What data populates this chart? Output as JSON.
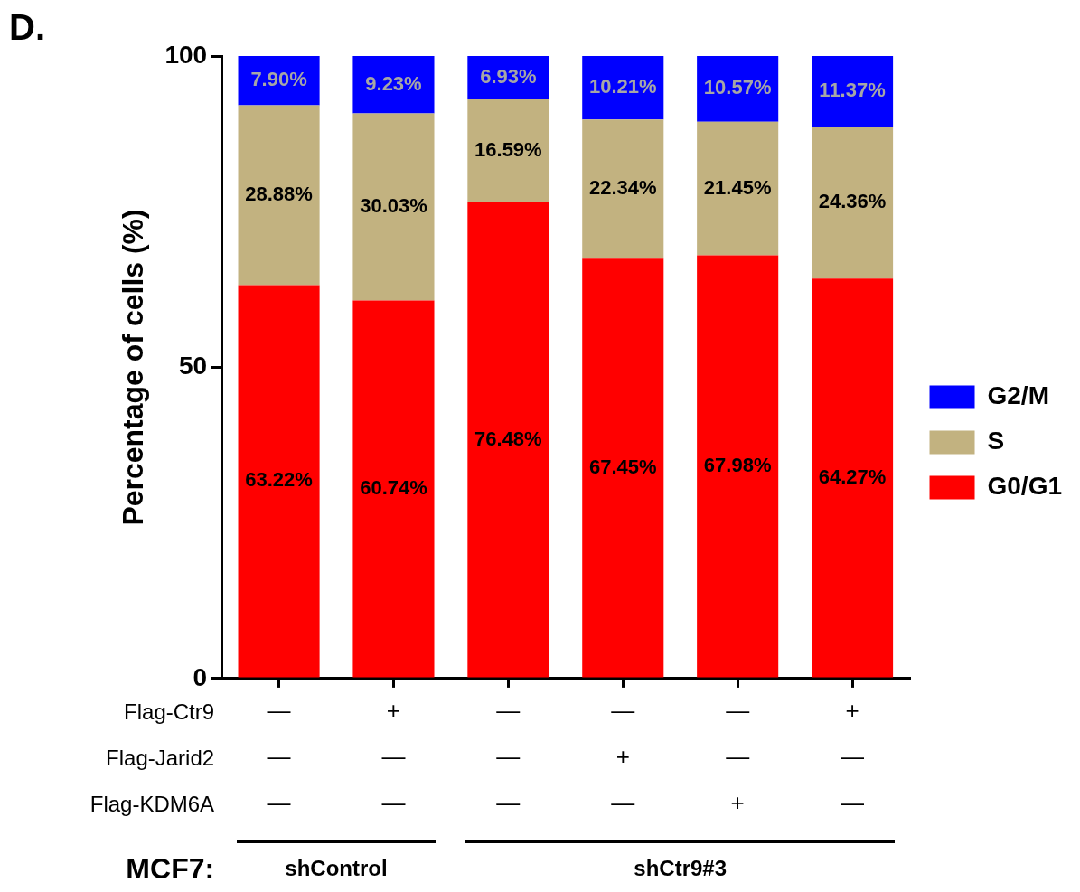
{
  "chart_data": {
    "type": "bar",
    "stacked": true,
    "categories": [
      "—\n—\n—",
      "+\n—\n—",
      "—\n—\n—",
      "—\n+\n—",
      "—\n—\n+",
      "+\n—\n—"
    ],
    "series": [
      {
        "name": "G0/G1",
        "color": "#ff0000",
        "values": [
          63.22,
          60.74,
          76.48,
          67.45,
          67.98,
          64.27
        ],
        "value_labels": [
          "63.22%",
          "60.74%",
          "76.48%",
          "67.45%",
          "67.98%",
          "64.27%"
        ]
      },
      {
        "name": "S",
        "color": "#c2b280",
        "values": [
          28.88,
          30.03,
          16.59,
          22.34,
          21.45,
          24.36
        ],
        "value_labels": [
          "28.88%",
          "30.03%",
          "16.59%",
          "22.34%",
          "21.45%",
          "24.36%"
        ]
      },
      {
        "name": "G2/M",
        "color": "#0000ff",
        "values": [
          7.9,
          9.23,
          6.93,
          10.21,
          10.57,
          11.37
        ],
        "value_labels": [
          "7.90%",
          "9.23%",
          "6.93%",
          "10.21%",
          "10.57%",
          "11.37%"
        ]
      }
    ],
    "ylim": [
      0,
      100
    ],
    "yticks": [
      0,
      50,
      100
    ],
    "ylabel": "Percentage of cells (%)",
    "legend": "right",
    "grid": false,
    "annotations": [
      "D.",
      "Flag-Ctr9",
      "Flag-Jarid2",
      "Flag-KDM6A",
      "MCF7:",
      "shControl",
      "shCtr9#3"
    ]
  }
}
